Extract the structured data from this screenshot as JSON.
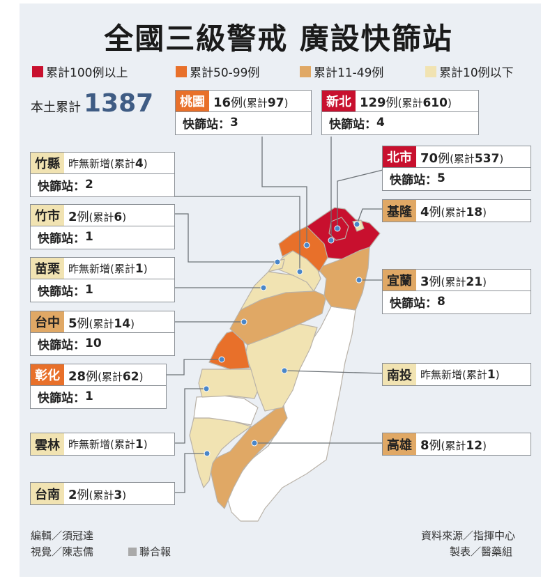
{
  "title": "全國三級警戒  廣設快篩站",
  "legend": [
    {
      "label": "累計100例以上",
      "color": "#c8102e"
    },
    {
      "label": "累計50-99例",
      "color": "#e8702a"
    },
    {
      "label": "累計11-49例",
      "color": "#e0a865"
    },
    {
      "label": "累計10例以下",
      "color": "#f1e3b2"
    }
  ],
  "total": {
    "label": "本土累計",
    "value": "1387"
  },
  "station_label": "快篩站：",
  "colors": {
    "unaffected": "#ffffff",
    "border": "#b9b2a8",
    "leader": "#6d7378",
    "dot": "#4a86c8"
  },
  "regions": [
    {
      "id": "taoyuan",
      "name": "桃園",
      "today": "16",
      "unit": "例",
      "cum": "97",
      "stations": "3",
      "tier": 2
    },
    {
      "id": "xinbei",
      "name": "新北",
      "today": "129",
      "unit": "例",
      "cum": "610",
      "stations": "4",
      "tier": 1
    },
    {
      "id": "taipei",
      "name": "北市",
      "today": "70",
      "unit": "例",
      "cum": "537",
      "stations": "5",
      "tier": 1
    },
    {
      "id": "keelung",
      "name": "基隆",
      "today": "4",
      "unit": "例",
      "cum": "18",
      "stations": "",
      "tier": 3
    },
    {
      "id": "yilan",
      "name": "宜蘭",
      "today": "3",
      "unit": "例",
      "cum": "21",
      "stations": "8",
      "tier": 3
    },
    {
      "id": "hsinchu-county",
      "name": "竹縣",
      "today": "",
      "unit": "昨無新增",
      "cum": "4",
      "stations": "2",
      "tier": 4
    },
    {
      "id": "hsinchu-city",
      "name": "竹市",
      "today": "2",
      "unit": "例",
      "cum": "6",
      "stations": "1",
      "tier": 4
    },
    {
      "id": "miaoli",
      "name": "苗栗",
      "today": "",
      "unit": "昨無新增",
      "cum": "1",
      "stations": "1",
      "tier": 4
    },
    {
      "id": "taichung",
      "name": "台中",
      "today": "5",
      "unit": "例",
      "cum": "14",
      "stations": "10",
      "tier": 3
    },
    {
      "id": "changhua",
      "name": "彰化",
      "today": "28",
      "unit": "例",
      "cum": "62",
      "stations": "1",
      "tier": 2
    },
    {
      "id": "nantou",
      "name": "南投",
      "today": "",
      "unit": "昨無新增",
      "cum": "1",
      "stations": "",
      "tier": 4
    },
    {
      "id": "yunlin",
      "name": "雲林",
      "today": "",
      "unit": "昨無新增",
      "cum": "1",
      "stations": "",
      "tier": 4
    },
    {
      "id": "kaohsiung",
      "name": "高雄",
      "today": "8",
      "unit": "例",
      "cum": "12",
      "stations": "",
      "tier": 3
    },
    {
      "id": "tainan",
      "name": "台南",
      "today": "2",
      "unit": "例",
      "cum": "3",
      "stations": "",
      "tier": 4
    }
  ],
  "cum_prefix": "(累計",
  "cum_suffix": ")",
  "credits": {
    "editor": "編輯／須冠達",
    "visual": "視覺／陳志儒",
    "publisher": "聯合報",
    "source": "資料來源／指揮中心",
    "made_by": "製表／醫藥組"
  }
}
